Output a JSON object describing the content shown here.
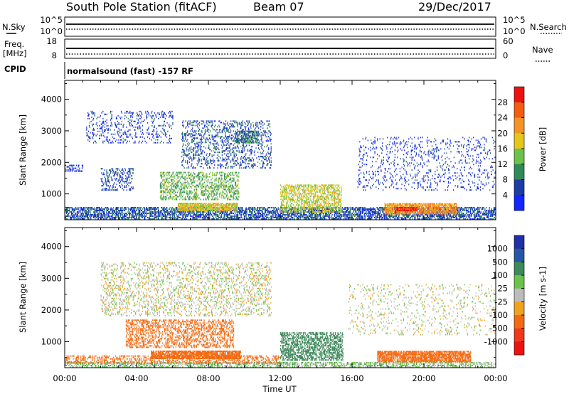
{
  "header": {
    "station": "South Pole Station (fitACF)",
    "beam": "Beam 07",
    "date": "29/Dec/2017"
  },
  "status_panels": {
    "nsky_label": "N.Sky",
    "nsearch_label": "N.Search",
    "noise_ticks_left": [
      "10^5",
      "10^0"
    ],
    "noise_ticks_right": [
      "10^5",
      "10^0"
    ],
    "freq_label": "Freq.",
    "freq_unit": "[MHz]",
    "freq_ticks": [
      "18",
      "8"
    ],
    "nave_label": "Nave",
    "nave_ticks": [
      "60",
      "0"
    ],
    "cpid_label": "CPID",
    "cpid_text": "normalsound (fast) -157 RF"
  },
  "chart_data": [
    {
      "type": "heatmap",
      "name": "power",
      "xlabel": "Time UT",
      "ylabel": "Slant Range [km]",
      "x_ticks": [
        "00:00",
        "04:00",
        "08:00",
        "12:00",
        "16:00",
        "20:00",
        "00:00"
      ],
      "xlim_hours": [
        0,
        24
      ],
      "ylim": [
        180,
        4600
      ],
      "y_ticks": [
        1000,
        2000,
        3000,
        4000
      ],
      "colorbar": {
        "label": "Power [dB]",
        "ticks": [
          "4",
          "8",
          "12",
          "16",
          "20",
          "24",
          "28"
        ],
        "range": [
          0,
          30
        ],
        "colors": [
          "#1226ff",
          "#1c3ca6",
          "#2e8b57",
          "#6cc24a",
          "#e6c619",
          "#f59422",
          "#f45c10",
          "#ee1111"
        ]
      },
      "echo_regions": [
        {
          "t": [
            0,
            24
          ],
          "r": [
            180,
            560
          ],
          "value": 6,
          "density": 0.55
        },
        {
          "t": [
            6.3,
            9.6
          ],
          "r": [
            450,
            700
          ],
          "value": 17,
          "density": 0.8
        },
        {
          "t": [
            5.3,
            9.7
          ],
          "r": [
            800,
            1700
          ],
          "value": 12,
          "density": 0.35
        },
        {
          "t": [
            12.0,
            15.4
          ],
          "r": [
            400,
            1300
          ],
          "value": 16,
          "density": 0.45
        },
        {
          "t": [
            17.8,
            21.8
          ],
          "r": [
            350,
            700
          ],
          "value": 21,
          "density": 0.75
        },
        {
          "t": [
            18.4,
            19.6
          ],
          "r": [
            450,
            560
          ],
          "value": 28,
          "density": 0.85
        },
        {
          "t": [
            2.0,
            3.8
          ],
          "r": [
            1100,
            1800
          ],
          "value": 5,
          "density": 0.25
        },
        {
          "t": [
            1.2,
            6.0
          ],
          "r": [
            2600,
            3600
          ],
          "value": 4,
          "density": 0.15
        },
        {
          "t": [
            6.5,
            11.5
          ],
          "r": [
            1800,
            3300
          ],
          "value": 6,
          "density": 0.22
        },
        {
          "t": [
            9.5,
            10.8
          ],
          "r": [
            2600,
            3000
          ],
          "value": 8,
          "density": 0.55
        },
        {
          "t": [
            16.3,
            24
          ],
          "r": [
            1100,
            2800
          ],
          "value": 4,
          "density": 0.1
        },
        {
          "t": [
            0,
            1.0
          ],
          "r": [
            1700,
            1900
          ],
          "value": 4,
          "density": 0.4
        }
      ]
    },
    {
      "type": "heatmap",
      "name": "velocity",
      "xlabel": "Time UT",
      "ylabel": "Slant Range [km]",
      "x_ticks": [
        "00:00",
        "04:00",
        "08:00",
        "12:00",
        "16:00",
        "20:00",
        "00:00"
      ],
      "xlim_hours": [
        0,
        24
      ],
      "ylim": [
        180,
        4600
      ],
      "y_ticks": [
        1000,
        2000,
        3000,
        4000
      ],
      "colorbar": {
        "label": "Velocity [m s-1]",
        "ticks": [
          "1000",
          "500",
          "100",
          "25",
          "-25",
          "-100",
          "-500",
          "-1000"
        ],
        "colors": [
          "#1f2fa8",
          "#2657a6",
          "#3d8a5a",
          "#6cc24a",
          "#bcbcbc",
          "#f0a21e",
          "#f46a12",
          "#f2381a",
          "#ee1111"
        ]
      },
      "echo_regions": [
        {
          "t": [
            0,
            24
          ],
          "r": [
            180,
            320
          ],
          "value": 50,
          "density": 0.45
        },
        {
          "t": [
            0,
            12
          ],
          "r": [
            300,
            560
          ],
          "value": -300,
          "density": 0.35
        },
        {
          "t": [
            4.8,
            9.8
          ],
          "r": [
            450,
            700
          ],
          "value": -300,
          "density": 0.8
        },
        {
          "t": [
            3.4,
            9.4
          ],
          "r": [
            800,
            1700
          ],
          "value": -300,
          "density": 0.35
        },
        {
          "t": [
            12.0,
            15.5
          ],
          "r": [
            400,
            1300
          ],
          "value": 200,
          "density": 0.5
        },
        {
          "t": [
            17.4,
            22.6
          ],
          "r": [
            350,
            700
          ],
          "value": -300,
          "density": 0.75
        },
        {
          "t": [
            2.0,
            11.5
          ],
          "r": [
            1800,
            3500
          ],
          "value": 0,
          "density": 0.18
        },
        {
          "t": [
            15.8,
            24
          ],
          "r": [
            1200,
            2800
          ],
          "value": 0,
          "density": 0.08
        }
      ]
    }
  ]
}
